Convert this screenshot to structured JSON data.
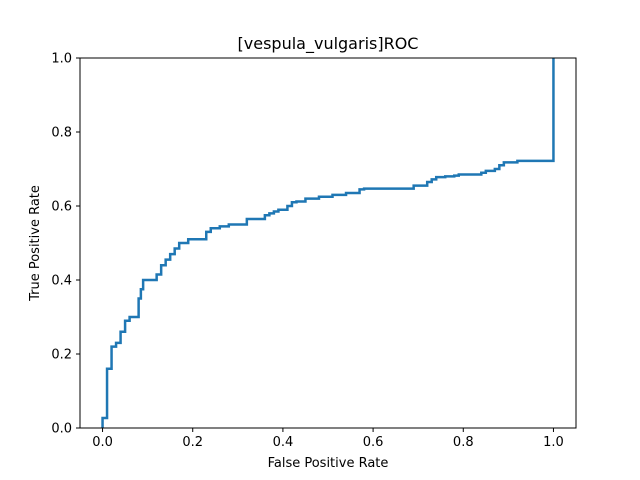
{
  "chart_data": {
    "type": "line",
    "title": "[vespula_vulgaris]ROC",
    "xlabel": "False Positive Rate",
    "ylabel": "True Positive Rate",
    "xlim": [
      -0.05,
      1.05
    ],
    "ylim": [
      0,
      1
    ],
    "xticks": [
      "0.0",
      "0.2",
      "0.4",
      "0.6",
      "0.8",
      "1.0"
    ],
    "yticks": [
      "0.0",
      "0.2",
      "0.4",
      "0.6",
      "0.8",
      "1.0"
    ],
    "grid": false,
    "legend": "none",
    "line_color": "#1f77b4",
    "series": [
      {
        "x": [
          0.0,
          0.0,
          0.01,
          0.01,
          0.02,
          0.02,
          0.03,
          0.03,
          0.04,
          0.04,
          0.05,
          0.05,
          0.06,
          0.06,
          0.08,
          0.08,
          0.085,
          0.085,
          0.09,
          0.09,
          0.12,
          0.12,
          0.13,
          0.13,
          0.14,
          0.14,
          0.15,
          0.15,
          0.16,
          0.16,
          0.17,
          0.17,
          0.19,
          0.19,
          0.23,
          0.23,
          0.24,
          0.24,
          0.26,
          0.26,
          0.28,
          0.28,
          0.32,
          0.32,
          0.36,
          0.36,
          0.37,
          0.37,
          0.38,
          0.38,
          0.39,
          0.39,
          0.41,
          0.41,
          0.42,
          0.42,
          0.43,
          0.43,
          0.45,
          0.45,
          0.48,
          0.48,
          0.51,
          0.51,
          0.54,
          0.54,
          0.57,
          0.57,
          0.58,
          0.58,
          0.69,
          0.69,
          0.72,
          0.72,
          0.73,
          0.73,
          0.74,
          0.74,
          0.76,
          0.76,
          0.78,
          0.78,
          0.79,
          0.79,
          0.84,
          0.84,
          0.85,
          0.85,
          0.87,
          0.87,
          0.88,
          0.88,
          0.89,
          0.89,
          0.92,
          0.92,
          1.0,
          1.0
        ],
        "y": [
          0.0,
          0.027,
          0.027,
          0.16,
          0.16,
          0.22,
          0.22,
          0.23,
          0.23,
          0.26,
          0.26,
          0.29,
          0.29,
          0.3,
          0.3,
          0.35,
          0.35,
          0.375,
          0.375,
          0.4,
          0.4,
          0.415,
          0.415,
          0.44,
          0.44,
          0.455,
          0.455,
          0.47,
          0.47,
          0.485,
          0.485,
          0.5,
          0.5,
          0.51,
          0.51,
          0.53,
          0.53,
          0.54,
          0.54,
          0.545,
          0.545,
          0.55,
          0.55,
          0.565,
          0.565,
          0.575,
          0.575,
          0.58,
          0.58,
          0.585,
          0.585,
          0.59,
          0.59,
          0.6,
          0.6,
          0.61,
          0.61,
          0.612,
          0.612,
          0.62,
          0.62,
          0.625,
          0.625,
          0.63,
          0.63,
          0.635,
          0.635,
          0.645,
          0.645,
          0.647,
          0.647,
          0.655,
          0.655,
          0.665,
          0.665,
          0.672,
          0.672,
          0.678,
          0.678,
          0.68,
          0.68,
          0.682,
          0.682,
          0.685,
          0.685,
          0.69,
          0.69,
          0.695,
          0.695,
          0.7,
          0.7,
          0.71,
          0.71,
          0.718,
          0.718,
          0.722,
          0.722,
          1.0
        ]
      }
    ]
  }
}
